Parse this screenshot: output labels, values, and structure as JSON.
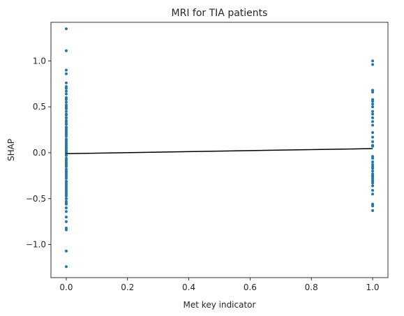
{
  "chart_data": {
    "type": "scatter",
    "title": "MRI for TIA patients",
    "xlabel": "Met key indicator",
    "ylabel": "SHAP",
    "xlim": [
      -0.05,
      1.05
    ],
    "ylim": [
      -1.36,
      1.42
    ],
    "xticks": [
      0.0,
      0.2,
      0.4,
      0.6,
      0.8,
      1.0
    ],
    "xtick_labels": [
      "0.0",
      "0.2",
      "0.4",
      "0.6",
      "0.8",
      "1.0"
    ],
    "yticks": [
      -1.0,
      -0.5,
      0.0,
      0.5,
      1.0
    ],
    "ytick_labels": [
      "−1.0",
      "−0.5",
      "0.0",
      "0.5",
      "1.0"
    ],
    "grid": false,
    "legend": "none",
    "point_color": "#1f77b4",
    "line_color": "#000000",
    "series": [
      {
        "type": "scatter",
        "x": [
          0,
          0,
          0,
          0,
          0,
          0,
          0,
          0,
          0,
          0,
          0,
          0,
          0,
          0,
          0,
          0,
          0,
          0,
          0,
          0,
          0,
          0,
          0,
          0,
          0,
          0,
          0,
          0,
          0,
          0,
          0,
          0,
          0,
          0,
          0,
          0,
          0,
          0,
          0,
          0,
          0,
          0,
          0,
          0,
          0,
          0,
          0,
          0,
          0,
          0,
          0,
          0,
          0,
          0,
          0,
          0,
          0,
          0,
          0,
          0,
          0,
          0,
          0,
          0,
          0,
          0,
          0,
          0,
          0,
          0,
          0,
          0,
          0,
          0,
          0,
          0,
          0,
          0,
          0,
          0,
          0,
          0,
          0,
          1,
          1,
          1,
          1,
          1,
          1,
          1,
          1,
          1,
          1,
          1,
          1,
          1,
          1,
          1,
          1,
          1,
          1,
          1,
          1,
          1,
          1,
          1,
          1,
          1,
          1,
          1,
          1,
          1,
          1,
          1,
          1,
          1,
          1,
          1,
          1,
          1,
          1
        ],
        "y": [
          1.35,
          1.11,
          0.9,
          0.86,
          0.76,
          0.72,
          0.67,
          0.64,
          0.6,
          0.55,
          0.5,
          0.48,
          0.45,
          0.41,
          0.38,
          0.35,
          0.31,
          0.27,
          0.25,
          0.23,
          0.2,
          0.15,
          0.13,
          0.1,
          0.06,
          0.03,
          0.02,
          0.0,
          -0.01,
          -0.03,
          -0.06,
          -0.08,
          -0.1,
          -0.13,
          -0.15,
          -0.18,
          -0.21,
          -0.23,
          -0.26,
          -0.28,
          -0.31,
          -0.34,
          -0.38,
          -0.42,
          -0.45,
          -0.47,
          -0.5,
          -0.53,
          -0.56,
          -0.6,
          -0.64,
          -0.7,
          -0.75,
          -0.82,
          -0.84,
          -1.07,
          -1.24,
          0.42,
          0.33,
          0.18,
          0.08,
          -0.2,
          -0.36,
          -0.15,
          0.22,
          0.48,
          0.58,
          0.7,
          -0.02,
          -0.4,
          -0.55,
          0.12,
          -0.12,
          -0.24,
          -0.44,
          0.05,
          0.28,
          -0.32,
          0.01,
          0.38,
          -0.08,
          -0.5,
          0.52,
          1.0,
          0.96,
          0.68,
          0.66,
          0.58,
          0.56,
          0.53,
          0.5,
          0.45,
          0.38,
          0.3,
          0.22,
          0.17,
          0.08,
          0.07,
          -0.06,
          -0.1,
          -0.13,
          -0.17,
          -0.2,
          -0.23,
          -0.26,
          -0.28,
          -0.31,
          -0.33,
          -0.36,
          -0.41,
          -0.45,
          -0.56,
          -0.58,
          -0.63,
          0.42,
          0.34,
          -0.04,
          -0.25,
          -0.3,
          0.12,
          -0.15
        ]
      },
      {
        "type": "line",
        "x": [
          0,
          1
        ],
        "y": [
          -0.01,
          0.045
        ]
      }
    ]
  }
}
